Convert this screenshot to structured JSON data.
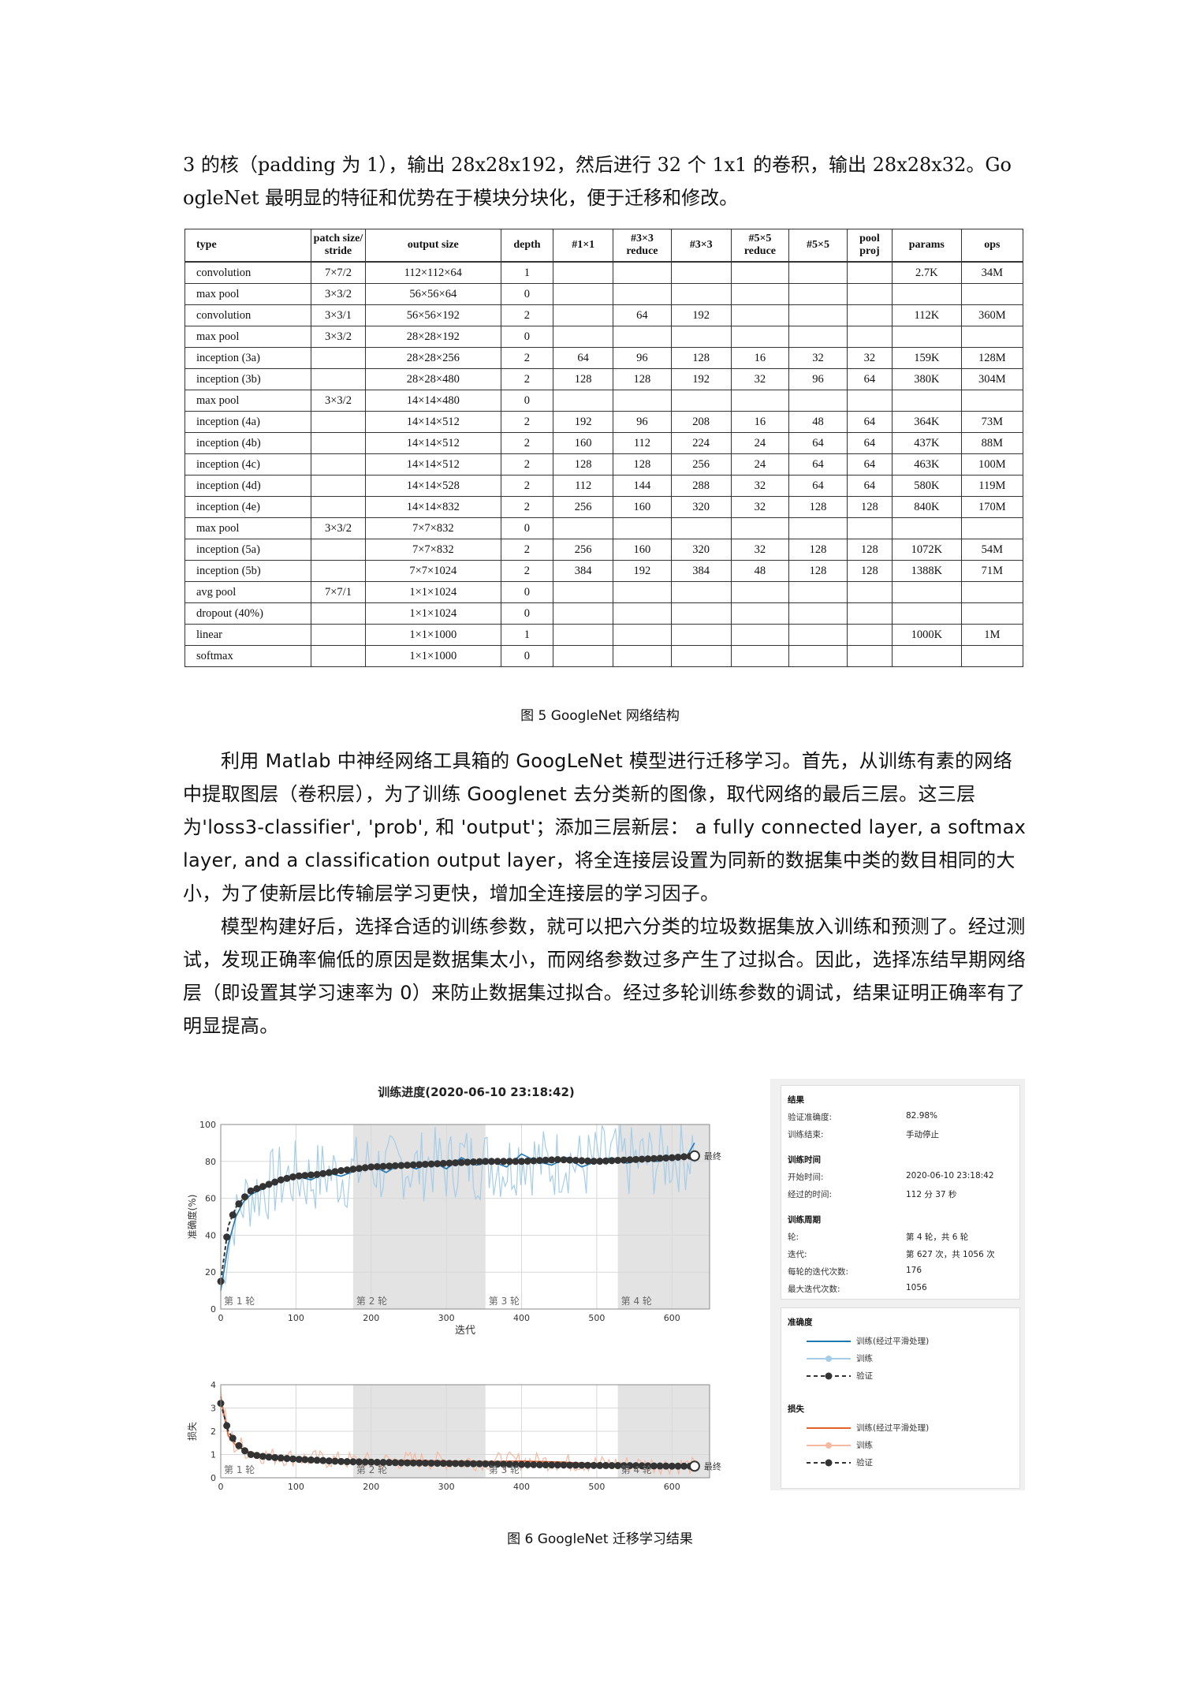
{
  "intro_text": {
    "line1": "3 的核（padding 为 1），输出 28x28x192，然后进行 32 个 1x1 的卷积，输出 28x28x32。Go",
    "line2": "ogleNet 最明显的特征和优势在于模块分块化，便于迁移和修改。"
  },
  "table": {
    "headers": [
      "type",
      "patch size/ stride",
      "output size",
      "depth",
      "#1×1",
      "#3×3 reduce",
      "#3×3",
      "#5×5 reduce",
      "#5×5",
      "pool proj",
      "params",
      "ops"
    ],
    "rows": [
      [
        "convolution",
        "7×7/2",
        "112×112×64",
        "1",
        "",
        "",
        "",
        "",
        "",
        "",
        "2.7K",
        "34M"
      ],
      [
        "max pool",
        "3×3/2",
        "56×56×64",
        "0",
        "",
        "",
        "",
        "",
        "",
        "",
        "",
        ""
      ],
      [
        "convolution",
        "3×3/1",
        "56×56×192",
        "2",
        "",
        "64",
        "192",
        "",
        "",
        "",
        "112K",
        "360M"
      ],
      [
        "max pool",
        "3×3/2",
        "28×28×192",
        "0",
        "",
        "",
        "",
        "",
        "",
        "",
        "",
        ""
      ],
      [
        "inception (3a)",
        "",
        "28×28×256",
        "2",
        "64",
        "96",
        "128",
        "16",
        "32",
        "32",
        "159K",
        "128M"
      ],
      [
        "inception (3b)",
        "",
        "28×28×480",
        "2",
        "128",
        "128",
        "192",
        "32",
        "96",
        "64",
        "380K",
        "304M"
      ],
      [
        "max pool",
        "3×3/2",
        "14×14×480",
        "0",
        "",
        "",
        "",
        "",
        "",
        "",
        "",
        ""
      ],
      [
        "inception (4a)",
        "",
        "14×14×512",
        "2",
        "192",
        "96",
        "208",
        "16",
        "48",
        "64",
        "364K",
        "73M"
      ],
      [
        "inception (4b)",
        "",
        "14×14×512",
        "2",
        "160",
        "112",
        "224",
        "24",
        "64",
        "64",
        "437K",
        "88M"
      ],
      [
        "inception (4c)",
        "",
        "14×14×512",
        "2",
        "128",
        "128",
        "256",
        "24",
        "64",
        "64",
        "463K",
        "100M"
      ],
      [
        "inception (4d)",
        "",
        "14×14×528",
        "2",
        "112",
        "144",
        "288",
        "32",
        "64",
        "64",
        "580K",
        "119M"
      ],
      [
        "inception (4e)",
        "",
        "14×14×832",
        "2",
        "256",
        "160",
        "320",
        "32",
        "128",
        "128",
        "840K",
        "170M"
      ],
      [
        "max pool",
        "3×3/2",
        "7×7×832",
        "0",
        "",
        "",
        "",
        "",
        "",
        "",
        "",
        ""
      ],
      [
        "inception (5a)",
        "",
        "7×7×832",
        "2",
        "256",
        "160",
        "320",
        "32",
        "128",
        "128",
        "1072K",
        "54M"
      ],
      [
        "inception (5b)",
        "",
        "7×7×1024",
        "2",
        "384",
        "192",
        "384",
        "48",
        "128",
        "128",
        "1388K",
        "71M"
      ],
      [
        "avg pool",
        "7×7/1",
        "1×1×1024",
        "0",
        "",
        "",
        "",
        "",
        "",
        "",
        "",
        ""
      ],
      [
        "dropout (40%)",
        "",
        "1×1×1024",
        "0",
        "",
        "",
        "",
        "",
        "",
        "",
        "",
        ""
      ],
      [
        "linear",
        "",
        "1×1×1000",
        "1",
        "",
        "",
        "",
        "",
        "",
        "",
        "1000K",
        "1M"
      ],
      [
        "softmax",
        "",
        "1×1×1000",
        "0",
        "",
        "",
        "",
        "",
        "",
        "",
        "",
        ""
      ]
    ]
  },
  "caption1": "图 5  GoogleNet 网络结构",
  "paragraph1": "利用 Matlab 中神经网络工具箱的 GoogLeNet 模型进行迁移学习。首先，从训练有素的网络中提取图层（卷积层），为了训练 Googlenet 去分类新的图像，取代网络的最后三层。这三层为'loss3-classifier', 'prob', 和 'output'；添加三层新层： a fully connected layer, a softmax layer, and a classification output layer，将全连接层设置为同新的数据集中类的数目相同的大小，为了使新层比传输层学习更快，增加全连接层的学习因子。",
  "paragraph2": "模型构建好后，选择合适的训练参数，就可以把六分类的垃圾数据集放入训练和预测了。经过测试，发现正确率偏低的原因是数据集太小，而网络参数过多产生了过拟合。因此，选择冻结早期网络层（即设置其学习速率为 0）来防止数据集过拟合。经过多轮训练参数的调试，结果证明正确率有了明显提高。",
  "caption2": "图 6  GoogleNet 迁移学习结果",
  "chart_data": [
    {
      "type": "line",
      "title": "训练进度(2020-06-10 23:18:42)",
      "xlabel": "迭代",
      "ylabel": "准确度(%)",
      "xlim": [
        0,
        650
      ],
      "ylim": [
        0,
        100
      ],
      "xticks": [
        0,
        100,
        200,
        300,
        400,
        500,
        600
      ],
      "yticks": [
        0,
        20,
        40,
        60,
        80,
        100
      ],
      "epoch_labels": [
        "第 1 轮",
        "第 2 轮",
        "第 3 轮",
        "第 4 轮"
      ],
      "end_label": "最终",
      "series": [
        {
          "name": "训练(经过平滑处理)",
          "color": "#1f77b4",
          "x": [
            0,
            10,
            20,
            30,
            40,
            50,
            60,
            80,
            100,
            120,
            140,
            160,
            180,
            200,
            220,
            240,
            260,
            280,
            300,
            320,
            340,
            360,
            380,
            400,
            420,
            440,
            460,
            480,
            500,
            520,
            540,
            560,
            580,
            600,
            620,
            630
          ],
          "y": [
            10,
            35,
            50,
            58,
            62,
            64,
            66,
            70,
            72,
            70,
            74,
            72,
            75,
            78,
            74,
            79,
            76,
            80,
            76,
            82,
            78,
            80,
            77,
            84,
            80,
            78,
            82,
            77,
            80,
            82,
            79,
            81,
            80,
            82,
            83,
            90
          ]
        },
        {
          "name": "验证",
          "color": "#333333",
          "x": [
            0,
            5,
            10,
            20,
            30,
            40,
            60,
            80,
            100,
            130,
            160,
            200,
            250,
            300,
            350,
            400,
            450,
            500,
            550,
            600,
            630
          ],
          "y": [
            15,
            30,
            45,
            55,
            60,
            64,
            67,
            70,
            72,
            73,
            75,
            77,
            78,
            79,
            80,
            80,
            81,
            80,
            81,
            82,
            83
          ]
        }
      ]
    },
    {
      "type": "line",
      "xlabel": "迭代",
      "ylabel": "损失",
      "xlim": [
        0,
        650
      ],
      "ylim": [
        0,
        4
      ],
      "xticks": [
        0,
        100,
        200,
        300,
        400,
        500,
        600
      ],
      "yticks": [
        0,
        1,
        2,
        3,
        4
      ],
      "epoch_labels": [
        "第 1 轮",
        "第 2 轮",
        "第 3 轮",
        "第 4 轮"
      ],
      "end_label": "最终",
      "series": [
        {
          "name": "训练(经过平滑处理)",
          "color": "#e8602c",
          "x": [
            0,
            5,
            10,
            20,
            30,
            40,
            60,
            80,
            100,
            130,
            160,
            200,
            250,
            300,
            350,
            400,
            450,
            500,
            550,
            600,
            630
          ],
          "y": [
            3.5,
            2.6,
            1.8,
            1.4,
            1.2,
            1.1,
            0.95,
            0.9,
            0.85,
            0.8,
            0.75,
            0.7,
            0.75,
            0.72,
            0.7,
            0.72,
            0.68,
            0.6,
            0.58,
            0.55,
            0.5
          ]
        },
        {
          "name": "验证",
          "color": "#333333",
          "x": [
            0,
            5,
            10,
            20,
            30,
            40,
            60,
            80,
            100,
            130,
            160,
            200,
            250,
            300,
            350,
            400,
            450,
            500,
            550,
            600,
            630
          ],
          "y": [
            3.2,
            2.6,
            2.0,
            1.5,
            1.2,
            1.0,
            0.9,
            0.85,
            0.8,
            0.75,
            0.7,
            0.67,
            0.64,
            0.62,
            0.6,
            0.57,
            0.55,
            0.53,
            0.52,
            0.5,
            0.5
          ]
        }
      ]
    }
  ],
  "side_panel": {
    "results_head": "结果",
    "val_acc_label": "验证准确度:",
    "val_acc_value": "82.98%",
    "train_end_label": "训练结束:",
    "train_end_value": "手动停止",
    "time_head": "训练时间",
    "start_label": "开始时间:",
    "start_value": "2020-06-10 23:18:42",
    "elapsed_label": "经过的时间:",
    "elapsed_value": "112 分 37 秒",
    "cycle_head": "训练周期",
    "epoch_label": "轮:",
    "epoch_value": "第 4 轮，共 6 轮",
    "iter_label": "迭代:",
    "iter_value": "第 627 次，共 1056 次",
    "iter_per_epoch_label": "每轮的迭代次数:",
    "iter_per_epoch_value": "176",
    "max_iter_label": "最大迭代次数:",
    "max_iter_value": "1056",
    "legend_acc_head": "准确度",
    "legend_loss_head": "损失",
    "legend_smooth": "训练(经过平滑处理)",
    "legend_train": "训练",
    "legend_val": "验证",
    "acc_color": "#1f77b4",
    "acc_light_color": "#a6cde8",
    "loss_color": "#e8602c",
    "loss_light_color": "#f4b9a0"
  }
}
